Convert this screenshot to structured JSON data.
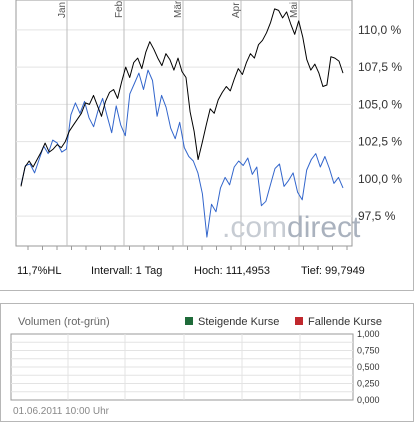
{
  "chart_data": [
    {
      "type": "line",
      "x_ticks": [
        "Jan",
        "Feb",
        "Mär",
        "Apr",
        "Mai"
      ],
      "ylim": [
        95.5,
        112
      ],
      "y_ticks": [
        "110,0 %",
        "107,5 %",
        "105,0 %",
        "102,5 %",
        "100,0 %",
        "97,5 %"
      ],
      "grid": true,
      "series": [
        {
          "color": "#000000",
          "values": [
            99.5,
            100.8,
            101.2,
            100.8,
            101.3,
            101.8,
            102.4,
            101.8,
            102.0,
            102.3,
            102.1,
            102.5,
            103.2,
            103.6,
            104.0,
            104.4,
            105.1,
            105.0,
            105.6,
            104.9,
            104.2,
            105.2,
            105.8,
            106.0,
            105.4,
            106.5,
            107.5,
            106.8,
            107.8,
            108.1,
            107.4,
            108.5,
            109.2,
            108.7,
            108.1,
            107.6,
            108.4,
            108.0,
            107.3,
            108.1,
            107.2,
            106.8,
            104.5,
            103.2,
            101.3,
            102.4,
            103.6,
            104.7,
            104.4,
            105.3,
            105.8,
            106.2,
            105.9,
            106.7,
            107.4,
            107.0,
            107.8,
            108.4,
            108.1,
            109.0,
            109.3,
            109.8,
            110.5,
            111.4,
            111.3,
            110.8,
            111.2,
            110.4,
            109.7,
            110.6,
            109.5,
            108.0,
            107.3,
            107.7,
            107.1,
            106.2,
            106.3,
            108.2,
            108.1,
            107.9,
            107.1
          ],
          "name": ""
        },
        {
          "color": "#3366cc",
          "values": [
            99.6,
            100.9,
            101.0,
            100.4,
            101.3,
            102.2,
            101.7,
            102.6,
            102.4,
            101.8,
            102.0,
            104.3,
            105.1,
            104.4,
            105.2,
            104.1,
            103.5,
            104.6,
            105.4,
            104.2,
            103.1,
            104.9,
            103.6,
            102.9,
            105.7,
            106.4,
            107.1,
            106.0,
            107.3,
            106.6,
            104.2,
            105.6,
            104.8,
            103.4,
            102.7,
            103.8,
            102.1,
            101.5,
            101.2,
            100.4,
            99.0,
            96.1,
            98.3,
            97.8,
            99.4,
            100.1,
            99.6,
            100.8,
            101.2,
            100.9,
            101.4,
            100.3,
            100.8,
            98.2,
            98.5,
            99.6,
            100.7,
            101.0,
            99.5,
            99.9,
            100.4,
            99.1,
            98.6,
            100.6,
            101.3,
            101.7,
            100.8,
            101.5,
            100.7,
            99.7,
            100.1,
            99.4
          ],
          "name": ""
        }
      ]
    },
    {
      "type": "bar",
      "title": "Volumen (rot-grün)",
      "ylim": [
        0,
        1
      ],
      "y_ticks": [
        "1,000",
        "0,750",
        "0,500",
        "0,250",
        "0,000"
      ],
      "values": [],
      "grid": true,
      "series": [
        {
          "name": "Steigende Kurse",
          "color": "#1f6b3a",
          "values": []
        },
        {
          "name": "Fallende Kurse",
          "color": "#c0282d",
          "values": []
        }
      ]
    }
  ],
  "stats": {
    "hl": "11,7%HL",
    "interval": "Intervall: 1 Tag",
    "hoch": "Hoch: 111,4953",
    "tief": "Tief: 99,7949"
  },
  "watermark": {
    "part1": ".com",
    "part2": "direct",
    "color1": "#c7ccd3",
    "color2": "#aab2be"
  },
  "timestamp": "01.06.2011 10:00 Uhr"
}
